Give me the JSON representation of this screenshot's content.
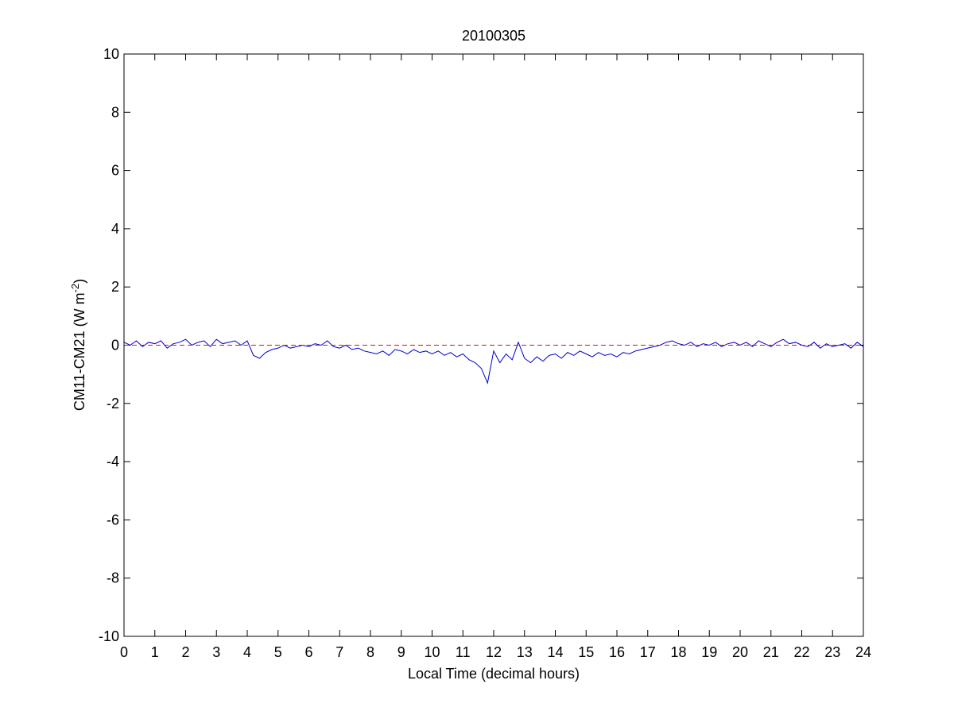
{
  "chart_data": {
    "type": "line",
    "title": "20100305",
    "x_label": "Local Time (decimal hours)",
    "y_label": {
      "text": "CM11-CM21 (W m",
      "superscript": "-2",
      "close": ")"
    },
    "xlim": [
      0,
      24
    ],
    "xticks": [
      0,
      1,
      2,
      3,
      4,
      5,
      6,
      7,
      8,
      9,
      10,
      11,
      12,
      13,
      14,
      15,
      16,
      17,
      18,
      19,
      20,
      21,
      22,
      23,
      24
    ],
    "ylim": [
      -10,
      10
    ],
    "yticks": [
      -10,
      -8,
      -6,
      -4,
      -2,
      0,
      2,
      4,
      6,
      8,
      10
    ],
    "grid": false,
    "series": [
      {
        "color": "#0000cc",
        "style": "solid",
        "x": [
          0,
          0.2,
          0.4,
          0.6,
          0.8,
          1,
          1.2,
          1.4,
          1.6,
          1.8,
          2,
          2.2,
          2.4,
          2.6,
          2.8,
          3,
          3.2,
          3.4,
          3.6,
          3.8,
          4,
          4.2,
          4.4,
          4.6,
          4.8,
          5,
          5.2,
          5.4,
          5.6,
          5.8,
          6,
          6.2,
          6.4,
          6.6,
          6.8,
          7,
          7.2,
          7.4,
          7.6,
          7.8,
          8,
          8.2,
          8.4,
          8.6,
          8.8,
          9,
          9.2,
          9.4,
          9.6,
          9.8,
          10,
          10.2,
          10.4,
          10.6,
          10.8,
          11,
          11.2,
          11.4,
          11.6,
          11.8,
          12,
          12.2,
          12.4,
          12.6,
          12.8,
          13,
          13.2,
          13.4,
          13.6,
          13.8,
          14,
          14.2,
          14.4,
          14.6,
          14.8,
          15,
          15.2,
          15.4,
          15.6,
          15.8,
          16,
          16.2,
          16.4,
          16.6,
          16.8,
          17,
          17.2,
          17.4,
          17.6,
          17.8,
          18,
          18.2,
          18.4,
          18.6,
          18.8,
          19,
          19.2,
          19.4,
          19.6,
          19.8,
          20,
          20.2,
          20.4,
          20.6,
          20.8,
          21,
          21.2,
          21.4,
          21.6,
          21.8,
          22,
          22.2,
          22.4,
          22.6,
          22.8,
          23,
          23.2,
          23.4,
          23.6,
          23.8,
          24
        ],
        "values": [
          0.1,
          0.0,
          0.15,
          -0.05,
          0.1,
          0.05,
          0.15,
          -0.1,
          0.05,
          0.1,
          0.2,
          0.0,
          0.1,
          0.15,
          -0.05,
          0.2,
          0.05,
          0.1,
          0.15,
          0.0,
          0.15,
          -0.35,
          -0.45,
          -0.25,
          -0.15,
          -0.1,
          0.0,
          -0.1,
          -0.05,
          0.0,
          -0.05,
          0.05,
          0.0,
          0.15,
          -0.05,
          -0.1,
          0.0,
          -0.15,
          -0.1,
          -0.2,
          -0.25,
          -0.3,
          -0.2,
          -0.35,
          -0.15,
          -0.2,
          -0.3,
          -0.15,
          -0.25,
          -0.2,
          -0.3,
          -0.2,
          -0.35,
          -0.25,
          -0.4,
          -0.3,
          -0.5,
          -0.6,
          -0.8,
          -1.3,
          -0.2,
          -0.6,
          -0.3,
          -0.5,
          0.1,
          -0.45,
          -0.6,
          -0.4,
          -0.55,
          -0.35,
          -0.3,
          -0.45,
          -0.25,
          -0.35,
          -0.2,
          -0.3,
          -0.4,
          -0.25,
          -0.35,
          -0.3,
          -0.4,
          -0.25,
          -0.3,
          -0.2,
          -0.15,
          -0.1,
          -0.05,
          0.0,
          0.1,
          0.15,
          0.05,
          0.0,
          0.1,
          -0.05,
          0.05,
          0.0,
          0.1,
          -0.05,
          0.05,
          0.1,
          0.0,
          0.1,
          -0.05,
          0.15,
          0.05,
          -0.05,
          0.1,
          0.2,
          0.05,
          0.1,
          0.0,
          -0.05,
          0.1,
          -0.1,
          0.05,
          -0.05,
          0.0,
          0.05,
          -0.1,
          0.1,
          -0.05
        ]
      },
      {
        "color": "#ff0000",
        "style": "dashed",
        "x": [
          0,
          24
        ],
        "values": [
          0,
          0
        ]
      }
    ]
  }
}
